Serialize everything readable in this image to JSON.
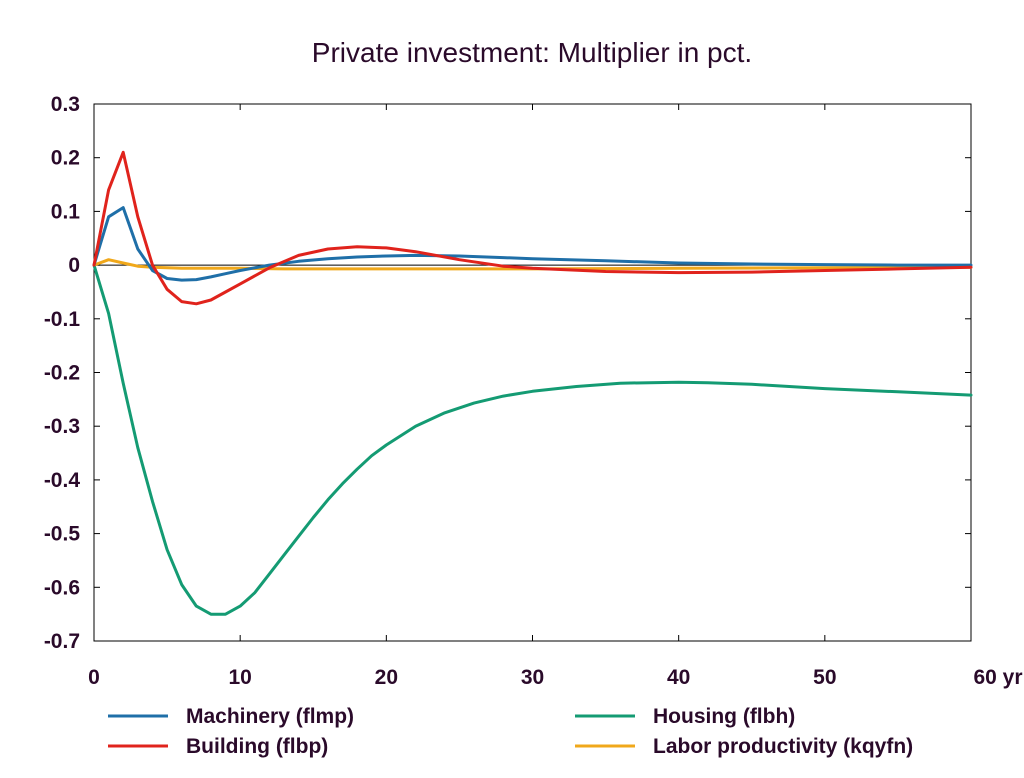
{
  "chart_data": {
    "type": "line",
    "title": "Private investment: Multiplier in pct.",
    "xlabel": "",
    "ylabel": "",
    "xlim": [
      0,
      60
    ],
    "ylim": [
      -0.7,
      0.3
    ],
    "x_ticks": [
      0,
      10,
      20,
      30,
      40,
      50,
      60
    ],
    "x_tick_labels": [
      "0",
      "10",
      "20",
      "30",
      "40",
      "50",
      "60 yr"
    ],
    "y_ticks": [
      0.3,
      0.2,
      0.1,
      0,
      -0.1,
      -0.2,
      -0.3,
      -0.4,
      -0.5,
      -0.6,
      -0.7
    ],
    "y_tick_labels": [
      "0.3",
      "0.2",
      "0.1",
      "0",
      "-0.1",
      "-0.2",
      "-0.3",
      "-0.4",
      "-0.5",
      "-0.6",
      "-0.7"
    ],
    "grid": false,
    "legend_position": "bottom",
    "series": [
      {
        "name": "Machinery (flmp)",
        "color": "#1f6fa8",
        "x": [
          0,
          1,
          2,
          3,
          4,
          5,
          6,
          7,
          8,
          9,
          10,
          12,
          14,
          16,
          18,
          20,
          22,
          25,
          28,
          30,
          35,
          40,
          45,
          50,
          55,
          60
        ],
        "y": [
          0,
          0.09,
          0.107,
          0.03,
          -0.01,
          -0.025,
          -0.028,
          -0.027,
          -0.022,
          -0.016,
          -0.01,
          0,
          0.007,
          0.012,
          0.015,
          0.017,
          0.018,
          0.017,
          0.014,
          0.012,
          0.008,
          0.004,
          0.002,
          0.001,
          0,
          0
        ]
      },
      {
        "name": "Building (flbp)",
        "color": "#e0231c",
        "x": [
          0,
          1,
          2,
          3,
          4,
          5,
          6,
          7,
          8,
          9,
          10,
          12,
          14,
          16,
          18,
          20,
          22,
          25,
          28,
          30,
          35,
          40,
          45,
          50,
          55,
          60
        ],
        "y": [
          0,
          0.14,
          0.21,
          0.09,
          0,
          -0.045,
          -0.068,
          -0.072,
          -0.065,
          -0.05,
          -0.035,
          -0.005,
          0.018,
          0.03,
          0.034,
          0.032,
          0.025,
          0.01,
          -0.002,
          -0.006,
          -0.012,
          -0.014,
          -0.013,
          -0.01,
          -0.007,
          -0.004
        ]
      },
      {
        "name": "Housing (flbh)",
        "color": "#149b73",
        "x": [
          0,
          1,
          2,
          3,
          4,
          5,
          6,
          7,
          8,
          9,
          10,
          11,
          12,
          13,
          14,
          15,
          16,
          17,
          18,
          19,
          20,
          22,
          24,
          26,
          28,
          30,
          33,
          36,
          40,
          42,
          45,
          50,
          55,
          60
        ],
        "y": [
          0,
          -0.09,
          -0.22,
          -0.34,
          -0.44,
          -0.53,
          -0.595,
          -0.635,
          -0.65,
          -0.65,
          -0.635,
          -0.61,
          -0.575,
          -0.54,
          -0.505,
          -0.47,
          -0.437,
          -0.407,
          -0.38,
          -0.355,
          -0.335,
          -0.3,
          -0.275,
          -0.257,
          -0.244,
          -0.235,
          -0.226,
          -0.22,
          -0.218,
          -0.219,
          -0.222,
          -0.23,
          -0.236,
          -0.242
        ]
      },
      {
        "name": "Labor productivity (kqyfn)",
        "color": "#f0a81b",
        "x": [
          0,
          1,
          2,
          3,
          4,
          5,
          6,
          8,
          10,
          13,
          15,
          20,
          30,
          40,
          50,
          60
        ],
        "y": [
          0,
          0.01,
          0.004,
          -0.002,
          -0.004,
          -0.005,
          -0.006,
          -0.006,
          -0.006,
          -0.007,
          -0.007,
          -0.007,
          -0.007,
          -0.006,
          -0.005,
          -0.004
        ]
      }
    ]
  }
}
